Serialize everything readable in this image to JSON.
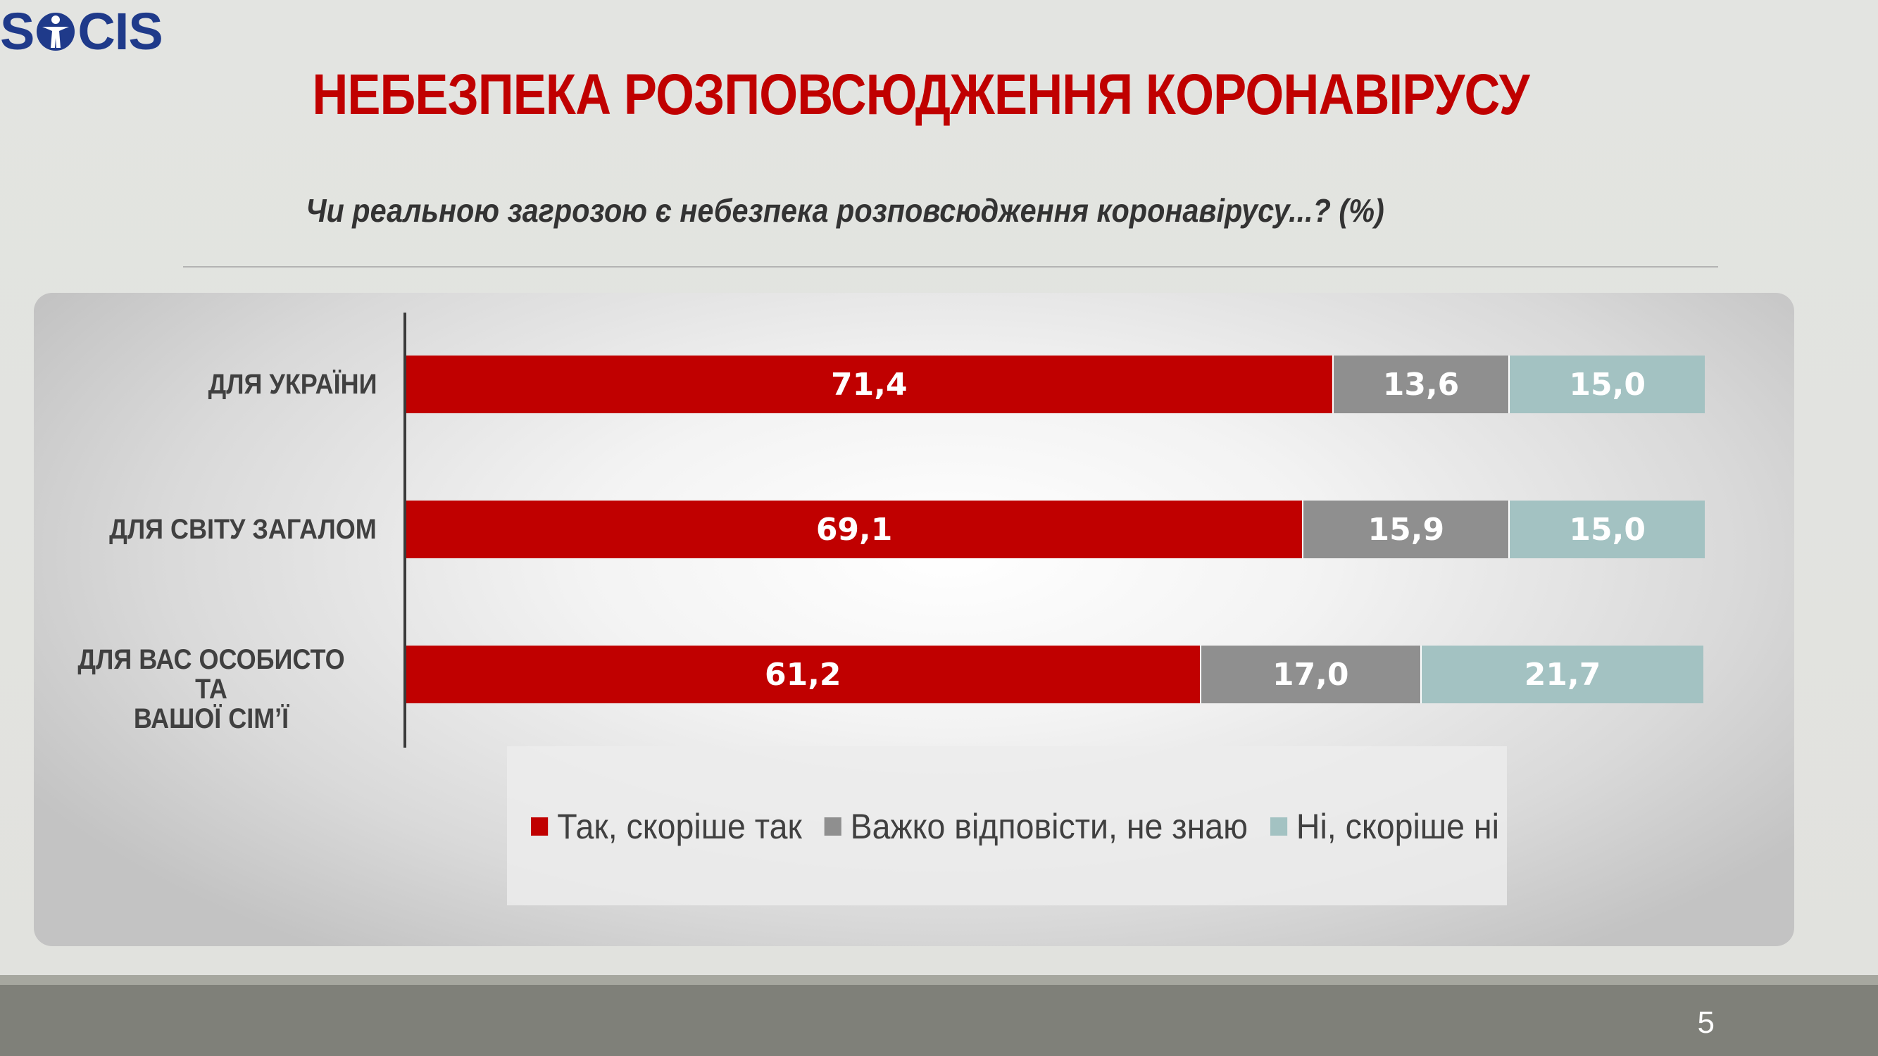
{
  "logo": {
    "text_left": "S",
    "text_right": "CIS"
  },
  "header": {
    "title": "НЕБЕЗПЕКА РОЗПОВСЮДЖЕННЯ КОРОНАВІРУСУ",
    "subtitle": "Чи реальною загрозою є небезпека розповсюдження коронавірусу...? (%)"
  },
  "colors": {
    "title": "#c00000",
    "series_yes": "#c00000",
    "series_hard": "#8f8f8f",
    "series_no": "#a3c2c2"
  },
  "chart_data": {
    "type": "bar",
    "orientation": "horizontal",
    "stacked": true,
    "xlim": [
      0,
      100
    ],
    "categories": [
      "ДЛЯ УКРАЇНИ",
      "ДЛЯ СВІТУ ЗАГАЛОМ",
      "ДЛЯ ВАС ОСОБИСТО ТА ВАШОЇ СІМ’Ї"
    ],
    "category_lines": [
      [
        "ДЛЯ УКРАЇНИ"
      ],
      [
        "ДЛЯ СВІТУ ЗАГАЛОМ"
      ],
      [
        "ДЛЯ ВАС ОСОБИСТО ТА",
        "ВАШОЇ СІМ’Ї"
      ]
    ],
    "series": [
      {
        "name": "Так, скоріше так",
        "values": [
          71.4,
          69.1,
          61.2
        ],
        "labels": [
          "71,4",
          "69,1",
          "61,2"
        ],
        "color": "#c00000"
      },
      {
        "name": "Важко відповісти, не знаю",
        "values": [
          13.6,
          15.9,
          17.0
        ],
        "labels": [
          "13,6",
          "15,9",
          "17,0"
        ],
        "color": "#8f8f8f"
      },
      {
        "name": "Ні, скоріше ні",
        "values": [
          15.0,
          15.0,
          21.7
        ],
        "labels": [
          "15,0",
          "15,0",
          "21,7"
        ],
        "color": "#a3c2c2"
      }
    ],
    "legend_position": "bottom",
    "grid": false
  },
  "footer": {
    "page_number": "5"
  }
}
